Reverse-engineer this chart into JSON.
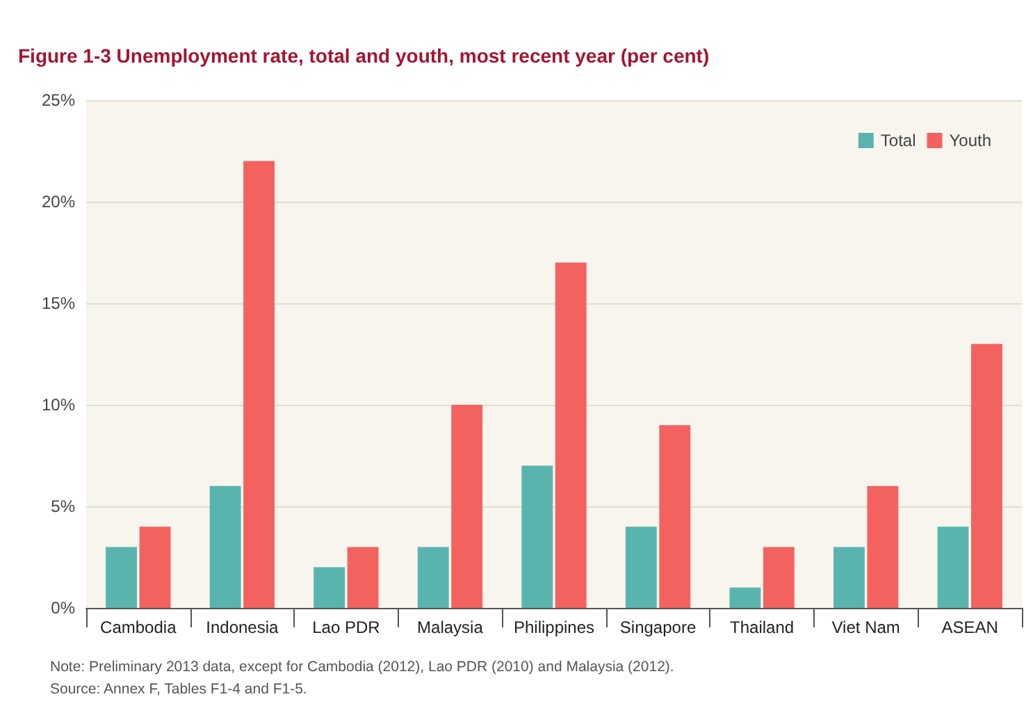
{
  "chart_data": {
    "type": "bar",
    "title": "Figure 1-3 Unemployment rate, total and youth, most recent year (per cent)",
    "categories": [
      "Cambodia",
      "Indonesia",
      "Lao PDR",
      "Malaysia",
      "Philippines",
      "Singapore",
      "Thailand",
      "Viet Nam",
      "ASEAN"
    ],
    "series": [
      {
        "name": "Total",
        "color": "#5ab4ae",
        "values": [
          3,
          6,
          2,
          3,
          7,
          4,
          1,
          3,
          4
        ]
      },
      {
        "name": "Youth",
        "color": "#f4625f",
        "values": [
          4,
          22,
          3,
          10,
          17,
          9,
          3,
          6,
          13
        ]
      }
    ],
    "ylim": [
      0,
      25
    ],
    "yticks": [
      {
        "value": 0,
        "label": "0%"
      },
      {
        "value": 5,
        "label": "5%"
      },
      {
        "value": 10,
        "label": "10%"
      },
      {
        "value": 15,
        "label": "15%"
      },
      {
        "value": 20,
        "label": "20%"
      },
      {
        "value": 25,
        "label": "25%"
      }
    ],
    "grid": "y",
    "legend": "top right",
    "annotations": [
      "Note: Preliminary 2013 data, except for Cambodia (2012), Lao PDR (2010) and Malaysia (2012).",
      "Source: Annex F, Tables F1-4 and F1-5."
    ]
  }
}
